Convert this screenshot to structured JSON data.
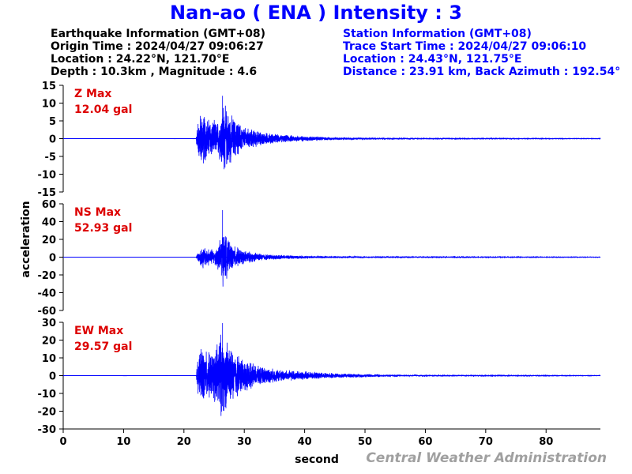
{
  "header": {
    "title": "Nan-ao  ( ENA )  Intensity : 3"
  },
  "earthquake_info": {
    "heading": "Earthquake Information  (GMT+08)",
    "origin_time": "Origin Time : 2024/04/27 09:06:27",
    "location": "Location : 24.22°N, 121.70°E",
    "depth_magnitude": "Depth : 10.3km , Magnitude : 4.6"
  },
  "station_info": {
    "heading": "Station Information  (GMT+08)",
    "trace_start": "Trace Start Time : 2024/04/27 09:06:10",
    "location": "Location : 24.43°N, 121.75°E",
    "distance": "Distance : 23.91 km, Back Azimuth : 192.54°"
  },
  "footer": "Central Weather Administration",
  "chart_data": {
    "type": "line",
    "xlabel": "second",
    "ylabel": "acceleration",
    "x_ticks": [
      0,
      10,
      20,
      30,
      40,
      50,
      60,
      70,
      80
    ],
    "xlim": [
      0,
      89
    ],
    "series_color": "#0000ff",
    "label_color": "#dd0000",
    "panels": [
      {
        "component": "Z",
        "label": "Z Max",
        "max_text": "12.04 gal",
        "max_gal": 12.04,
        "ylim": [
          -15,
          15
        ],
        "y_ticks": [
          15,
          10,
          5,
          0,
          -5,
          -10,
          -15
        ],
        "envelope": [
          [
            0,
            0.05
          ],
          [
            22,
            0.05
          ],
          [
            22.2,
            4.5
          ],
          [
            22.8,
            8.3
          ],
          [
            23.5,
            7.2
          ],
          [
            24.5,
            6
          ],
          [
            25.5,
            5
          ],
          [
            26,
            7
          ],
          [
            26.5,
            11.5
          ],
          [
            27.3,
            8.5
          ],
          [
            28.5,
            6
          ],
          [
            30,
            3.5
          ],
          [
            33,
            2
          ],
          [
            36,
            1.2
          ],
          [
            40,
            0.8
          ],
          [
            45,
            0.4
          ],
          [
            50,
            0.3
          ],
          [
            55,
            0.2
          ],
          [
            60,
            0.12
          ],
          [
            89,
            0.05
          ]
        ]
      },
      {
        "component": "NS",
        "label": "NS Max",
        "max_text": "52.93 gal",
        "max_gal": 52.93,
        "ylim": [
          -60,
          60
        ],
        "y_ticks": [
          60,
          40,
          20,
          0,
          -20,
          -40,
          -60
        ],
        "envelope": [
          [
            0,
            0.1
          ],
          [
            22,
            0.1
          ],
          [
            22.3,
            6
          ],
          [
            23,
            14
          ],
          [
            24,
            11
          ],
          [
            25,
            9
          ],
          [
            25.8,
            18
          ],
          [
            26.5,
            35
          ],
          [
            27.5,
            18
          ],
          [
            28.5,
            13
          ],
          [
            30,
            8
          ],
          [
            33,
            4
          ],
          [
            36,
            2.5
          ],
          [
            40,
            1.8
          ],
          [
            45,
            1.2
          ],
          [
            50,
            1
          ],
          [
            55,
            0.8
          ],
          [
            60,
            0.5
          ],
          [
            89,
            0.2
          ]
        ]
      },
      {
        "component": "EW",
        "label": "EW Max",
        "max_text": "29.57 gal",
        "max_gal": 29.57,
        "ylim": [
          -30,
          30
        ],
        "y_ticks": [
          30,
          20,
          10,
          0,
          -10,
          -20,
          -30
        ],
        "envelope": [
          [
            0,
            0.1
          ],
          [
            22,
            0.1
          ],
          [
            22.3,
            10
          ],
          [
            23,
            17
          ],
          [
            24,
            14
          ],
          [
            25,
            15
          ],
          [
            26,
            26
          ],
          [
            26.8,
            22
          ],
          [
            28,
            16
          ],
          [
            30,
            10
          ],
          [
            32,
            6
          ],
          [
            35,
            4
          ],
          [
            40,
            2.5
          ],
          [
            45,
            1.5
          ],
          [
            50,
            1
          ],
          [
            55,
            0.6
          ],
          [
            60,
            0.3
          ],
          [
            89,
            0.1
          ]
        ]
      }
    ]
  }
}
